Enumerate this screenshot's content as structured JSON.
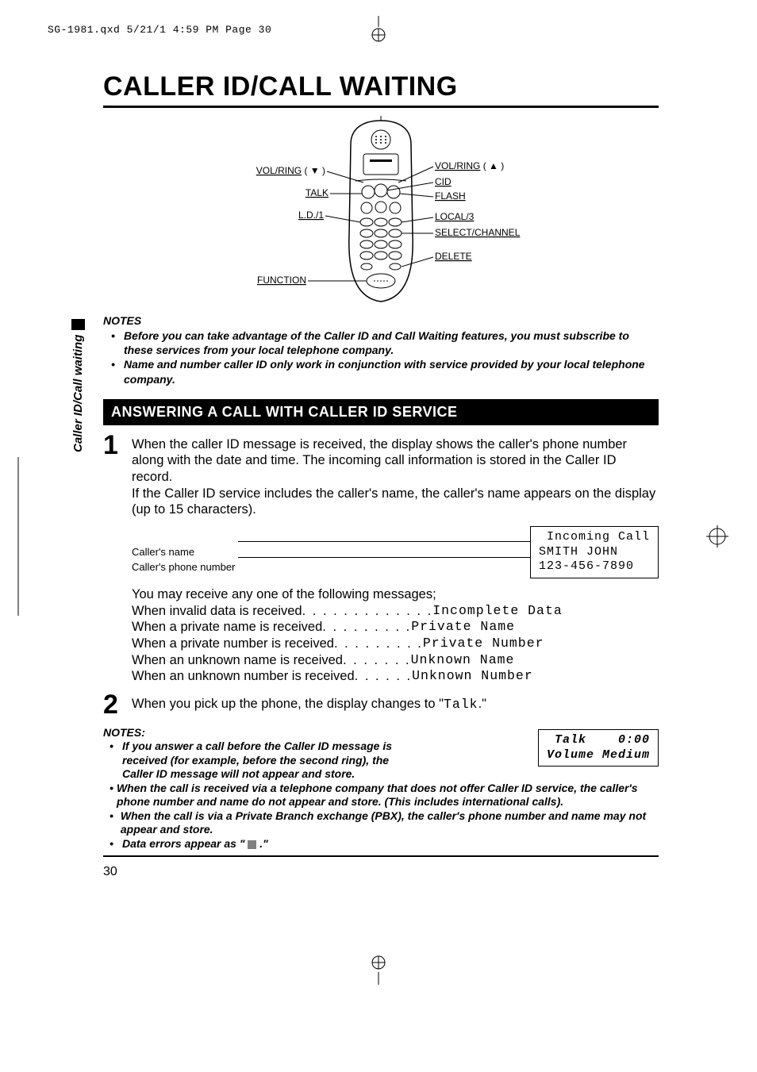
{
  "runhead": "SG-1981.qxd  5/21/1 4:59 PM  Page 30",
  "title": "CALLER ID/CALL WAITING",
  "sidetab": "Caller ID/Call waiting",
  "phone_labels": {
    "left": [
      "VOL/RING",
      "TALK",
      "L.D./1",
      "FUNCTION"
    ],
    "right": [
      "VOL/RING",
      "CID",
      "FLASH",
      "LOCAL/3",
      "SELECT/CHANNEL",
      "DELETE"
    ],
    "left_suffix": [
      "( ▼ )",
      "",
      "",
      ""
    ],
    "right_suffix": [
      "( ▲ )",
      "",
      "",
      "",
      "",
      ""
    ]
  },
  "notes1_label": "NOTES",
  "notes1": [
    "Before you can take advantage of the Caller ID and Call Waiting features, you must subscribe to these services from your local telephone company.",
    "Name and number caller ID only work in conjunction with service provided by your local telephone company."
  ],
  "section": "ANSWERING A CALL WITH CALLER ID SERVICE",
  "step1": {
    "num": "1",
    "body": "When the caller ID message is received, the display shows the caller's phone number along with the date and time. The incoming call information is stored in the Caller ID record.\nIf the Caller ID service includes the caller's name, the caller's name appears on the display (up to 15 characters)."
  },
  "cid_labels": [
    "Caller's name",
    "Caller's phone number"
  ],
  "cid_lcd": " Incoming Call\nSMITH JOHN\n123-456-7890",
  "messages_intro": "You may receive any one of the following messages;",
  "messages": [
    {
      "t": "When invalid data is received",
      "d": " . . . . . . . . . . . . .",
      "v": "Incomplete Data"
    },
    {
      "t": "When a private name is received",
      "d": "  . . . . . . . . .",
      "v": "Private Name"
    },
    {
      "t": "When a private number is received",
      "d": " . . . . . . . . .",
      "v": "Private Number"
    },
    {
      "t": "When an unknown name is received",
      "d": " . . . . . . .",
      "v": "Unknown Name"
    },
    {
      "t": "When an unknown number is received",
      "d": "  . . . . . .",
      "v": "Unknown Number"
    }
  ],
  "step2": {
    "num": "2",
    "pre": "When you pick up the phone, the display changes to \"",
    "mono": "Talk",
    "post": ".\""
  },
  "notes2_label": "NOTES:",
  "talk_lcd": " Talk    0:00\nVolume Medium",
  "notes2": [
    "If you answer a call before the Caller ID message is received (for example, before the second ring), the Caller ID message will not appear and store.",
    "When the call is received via a telephone company that does not offer Caller ID service, the caller's phone number and name do not appear and store. (This includes international calls).",
    "When the call is via a Private Branch exchange (PBX), the caller's phone number and name may not appear and store.",
    "Data errors appear as \"    .\""
  ],
  "pagenum": "30",
  "colors": {
    "bg": "#ffffff",
    "text": "#000000",
    "gray": "#808080"
  }
}
